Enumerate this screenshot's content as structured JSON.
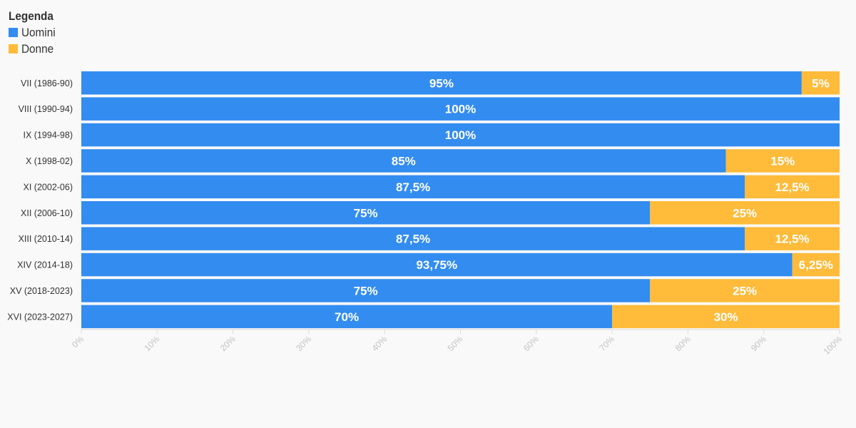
{
  "legend": {
    "title": "Legenda",
    "items": [
      {
        "label": "Uomini",
        "color": "#338cf0"
      },
      {
        "label": "Donne",
        "color": "#ffbb39"
      }
    ]
  },
  "chart_data": {
    "type": "bar",
    "orientation": "horizontal",
    "stacked": true,
    "categories": [
      "VII (1986-90)",
      "VIII (1990-94)",
      "IX (1994-98)",
      "X (1998-02)",
      "XI (2002-06)",
      "XII (2006-10)",
      "XIII (2010-14)",
      "XIV (2014-18)",
      "XV (2018-2023)",
      "XVI (2023-2027)"
    ],
    "series": [
      {
        "name": "Uomini",
        "color": "#338cf0",
        "values": [
          95,
          100,
          100,
          85,
          87.5,
          75,
          87.5,
          93.75,
          75,
          70
        ],
        "labels": [
          "95%",
          "100%",
          "100%",
          "85%",
          "87,5%",
          "75%",
          "87,5%",
          "93,75%",
          "75%",
          "70%"
        ]
      },
      {
        "name": "Donne",
        "color": "#ffbb39",
        "values": [
          5,
          0,
          0,
          15,
          12.5,
          25,
          12.5,
          6.25,
          25,
          30
        ],
        "labels": [
          "5%",
          "",
          "",
          "15%",
          "12,5%",
          "25%",
          "12,5%",
          "6,25%",
          "25%",
          "30%"
        ]
      }
    ],
    "xlim": [
      0,
      100
    ],
    "x_ticks": [
      "0%",
      "10%",
      "20%",
      "30%",
      "40%",
      "50%",
      "60%",
      "70%",
      "80%",
      "90%",
      "100%"
    ],
    "grid": false,
    "legend_position": "top-left"
  }
}
